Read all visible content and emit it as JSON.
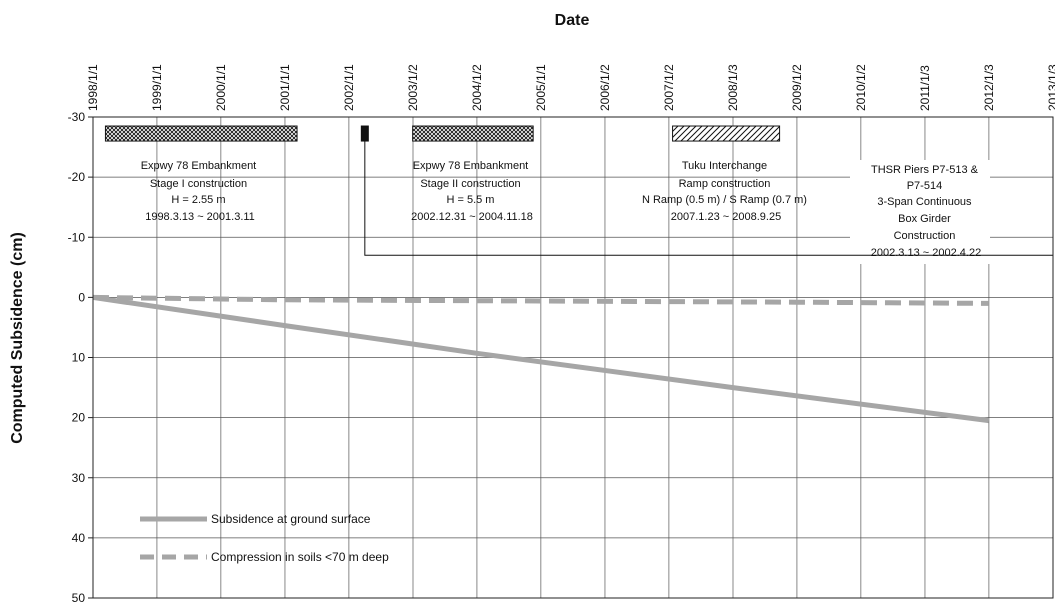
{
  "chart_data": {
    "type": "line",
    "xlabel": "Date",
    "ylabel": "Computed Subsidence (cm)",
    "x_axis": {
      "ticks": [
        "1998/1/1",
        "1999/1/1",
        "2000/1/1",
        "2001/1/1",
        "2002/1/1",
        "2003/1/2",
        "2004/1/2",
        "2005/1/1",
        "2006/1/2",
        "2007/1/2",
        "2008/1/3",
        "2009/1/2",
        "2010/1/2",
        "2011/1/3",
        "2012/1/3",
        "2013/1/3"
      ],
      "range": [
        "1998/1/1",
        "2013/1/3"
      ],
      "position": "top",
      "label_rotation": -90
    },
    "y_axis": {
      "ticks": [
        "-30",
        "-20",
        "-10",
        "0",
        "10",
        "20",
        "30",
        "40",
        "50"
      ],
      "range": [
        -30,
        50
      ],
      "direction": "downward positive"
    },
    "grid": true,
    "series": [
      {
        "name": "Subsidence at ground surface",
        "style": "solid",
        "color": "#a6a6a6",
        "points": [
          {
            "x": "1998/1/1",
            "y": 0
          },
          {
            "x": "2001/1/1",
            "y": 4.7
          },
          {
            "x": "2004/1/2",
            "y": 9.3
          },
          {
            "x": "2008/1/3",
            "y": 15.0
          },
          {
            "x": "2012/1/3",
            "y": 20.5
          }
        ]
      },
      {
        "name": "Compression in soils <70 m deep",
        "style": "dashed",
        "color": "#a6a6a6",
        "points": [
          {
            "x": "1998/1/1",
            "y": 0
          },
          {
            "x": "2001/1/1",
            "y": 0.4
          },
          {
            "x": "2005/1/1",
            "y": 0.6
          },
          {
            "x": "2009/1/2",
            "y": 0.8
          },
          {
            "x": "2012/1/3",
            "y": 1.0
          }
        ]
      }
    ],
    "legend": {
      "placement": "bottom-left"
    },
    "construction_events": [
      {
        "id": "stage1",
        "start": "1998/3/13",
        "end": "2001/3/11",
        "pattern": "cross-hatch",
        "lines": [
          "Expwy 78 Embankment",
          "Stage I construction",
          "H = 2.55 m",
          "1998.3.13 ~ 2001.3.11"
        ]
      },
      {
        "id": "stage2",
        "start": "2002/12/31",
        "end": "2004/11/18",
        "pattern": "cross-hatch",
        "lines": [
          "Expwy 78 Embankment",
          "Stage II construction",
          "H = 5.5 m",
          "2002.12.31 ~ 2004.11.18"
        ]
      },
      {
        "id": "tuku",
        "start": "2007/1/23",
        "end": "2008/9/25",
        "pattern": "diagonal-hatch",
        "lines": [
          "Tuku Interchange",
          "Ramp construction",
          "N Ramp (0.5 m) / S Ramp (0.7 m)",
          "2007.1.23 ~ 2008.9.25"
        ]
      },
      {
        "id": "thsr",
        "start": "2002/3/13",
        "end": "2002/4/22",
        "pattern": "solid",
        "lines": [
          "THSR Piers P7-513 &",
          "P7-514",
          "3-Span Continuous",
          "Box Girder",
          "Construction",
          "2002.3.13 ~ 2002.4.22"
        ]
      }
    ]
  }
}
